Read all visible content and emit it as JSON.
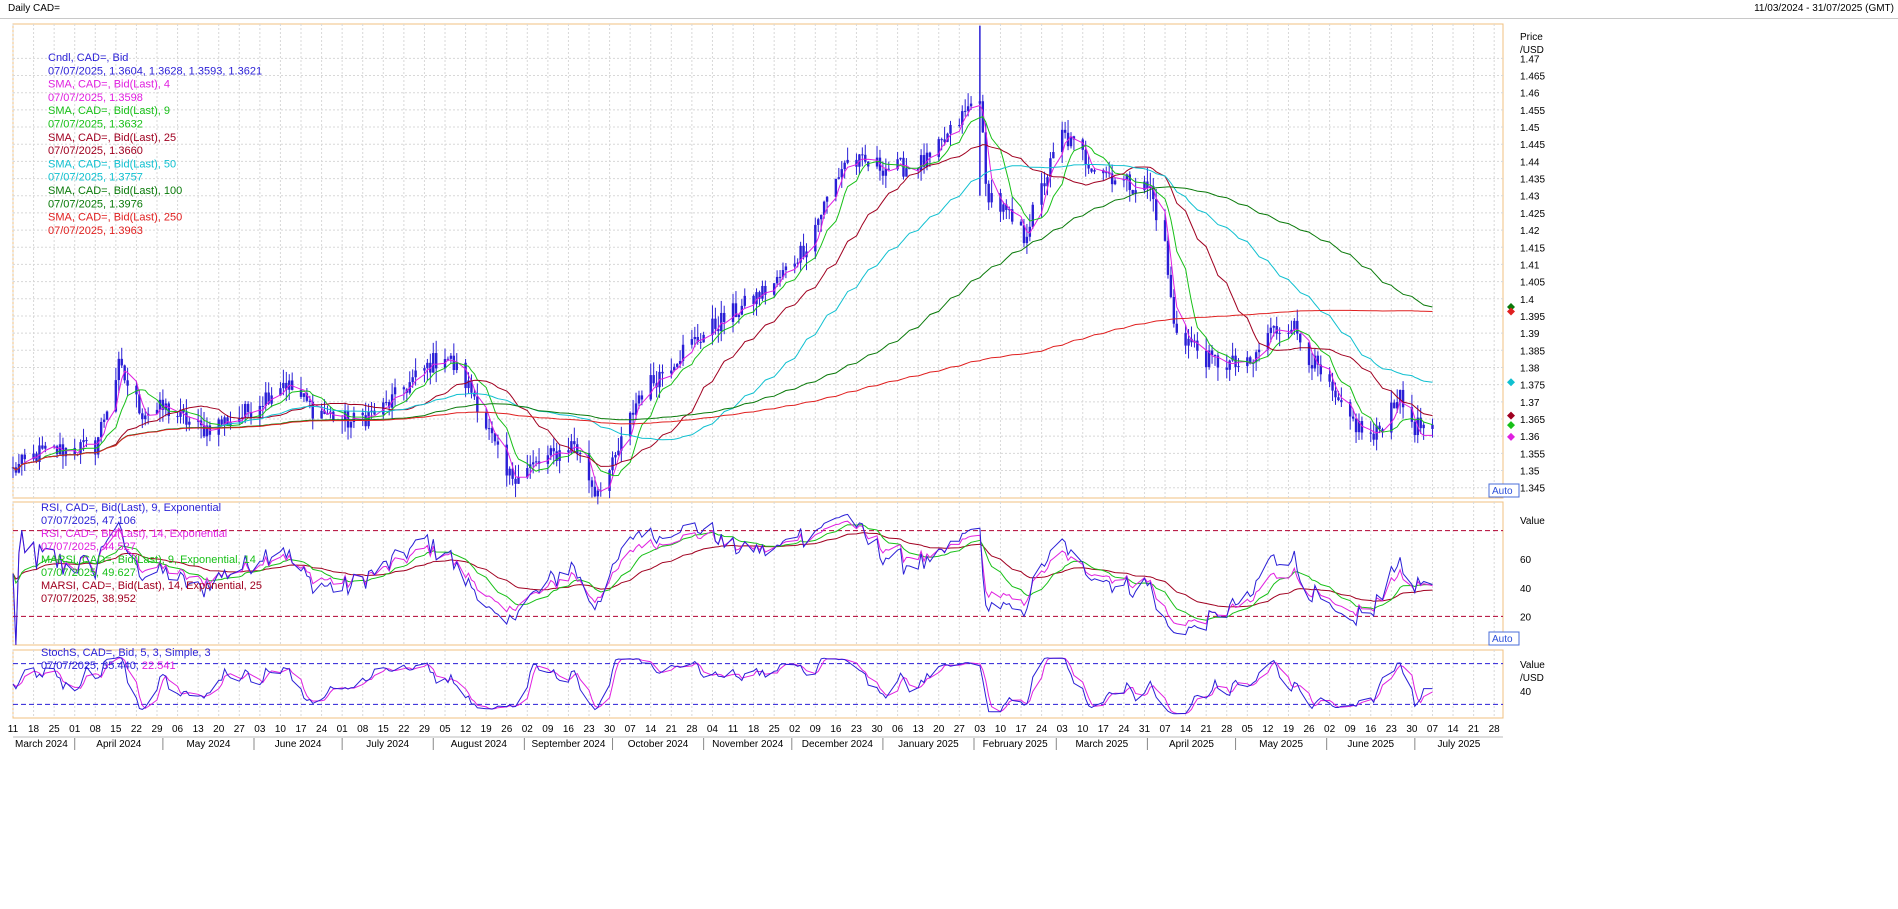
{
  "window": {
    "title": "Daily CAD=",
    "range": "11/03/2024 - 31/07/2025 (GMT)"
  },
  "colors": {
    "candle": "#2a1fd6",
    "sma4": "#e020e0",
    "sma9": "#18c018",
    "sma25": "#a00020",
    "sma50": "#10c0d0",
    "sma100": "#0a7a0a",
    "sma250": "#e02020",
    "rsi9": "#2a1fd6",
    "rsi14": "#e020e0",
    "marsi9": "#18c018",
    "marsi14": "#a00020",
    "stoch_k": "#2a1fd6",
    "stoch_d": "#e020e0",
    "grid": "#d8d8d8",
    "ref": "#b00030"
  },
  "legend": {
    "price": [
      {
        "name": "Cndl, CAD=, Bid",
        "value": "07/07/2025, 1.3604, 1.3628, 1.3593, 1.3621",
        "color": "#2a1fd6"
      },
      {
        "name": "SMA, CAD=, Bid(Last), 4",
        "value": "07/07/2025, 1.3598",
        "color": "#e020e0"
      },
      {
        "name": "SMA, CAD=, Bid(Last), 9",
        "value": "07/07/2025, 1.3632",
        "color": "#18c018"
      },
      {
        "name": "SMA, CAD=, Bid(Last), 25",
        "value": "07/07/2025, 1.3660",
        "color": "#a00020"
      },
      {
        "name": "SMA, CAD=, Bid(Last), 50",
        "value": "07/07/2025, 1.3757",
        "color": "#10c0d0"
      },
      {
        "name": "SMA, CAD=, Bid(Last), 100",
        "value": "07/07/2025, 1.3976",
        "color": "#0a7a0a"
      },
      {
        "name": "SMA, CAD=, Bid(Last), 250",
        "value": "07/07/2025, 1.3963",
        "color": "#e02020"
      }
    ],
    "rsi": [
      {
        "name": "RSI, CAD=, Bid(Last), 9, Exponential",
        "value": "07/07/2025, 47.106",
        "color": "#2a1fd6"
      },
      {
        "name": "RSI, CAD=, Bid(Last), 14, Exponential",
        "value": "07/07/2025, 44.527",
        "color": "#e020e0"
      },
      {
        "name": "MARSI, CAD=, Bid(Last), 9, Exponential, 14",
        "value": "07/07/2025, 49.627",
        "color": "#18c018"
      },
      {
        "name": "MARSI, CAD=, Bid(Last), 14, Exponential, 25",
        "value": "07/07/2025, 38.952",
        "color": "#a00020"
      }
    ],
    "stoch": [
      {
        "name": "StochS, CAD=, Bid, 5, 3, Simple, 3",
        "value": "07/07/2025, 35.440, 22.541",
        "color": "#2a1fd6",
        "value2": "22.541",
        "value1": "07/07/2025, 35.440,"
      }
    ]
  },
  "axes": {
    "price_title": "Price",
    "price_unit": "/USD",
    "price_ticks": [
      "1.47",
      "1.465",
      "1.46",
      "1.455",
      "1.45",
      "1.445",
      "1.44",
      "1.435",
      "1.43",
      "1.425",
      "1.42",
      "1.415",
      "1.41",
      "1.405",
      "1.4",
      "1.395",
      "1.39",
      "1.385",
      "1.38",
      "1.375",
      "1.37",
      "1.365",
      "1.36",
      "1.355",
      "1.35",
      "1.345"
    ],
    "rsi_title": "Value",
    "rsi_ticks": [
      "60",
      "40",
      "20"
    ],
    "stoch_title": "Value",
    "stoch_unit": "/USD",
    "stoch_ticks": [
      "40"
    ],
    "auto_label": "Auto",
    "day_ticks": [
      "11",
      "18",
      "25",
      "01",
      "08",
      "15",
      "22",
      "29",
      "06",
      "13",
      "20",
      "27",
      "03",
      "10",
      "17",
      "24",
      "01",
      "08",
      "15",
      "22",
      "29",
      "05",
      "12",
      "19",
      "26",
      "02",
      "09",
      "16",
      "23",
      "30",
      "07",
      "14",
      "21",
      "28",
      "04",
      "11",
      "18",
      "25",
      "02",
      "09",
      "16",
      "23",
      "30",
      "06",
      "13",
      "20",
      "27",
      "03",
      "10",
      "17",
      "24",
      "03",
      "10",
      "17",
      "24",
      "31",
      "07",
      "14",
      "21",
      "28",
      "05",
      "12",
      "19",
      "26",
      "02",
      "09",
      "16",
      "23",
      "30",
      "07",
      "14",
      "21",
      "28"
    ],
    "month_labels": [
      "March 2024",
      "April 2024",
      "May 2024",
      "June 2024",
      "July 2024",
      "August 2024",
      "September 2024",
      "October 2024",
      "November 2024",
      "December 2024",
      "January 2025",
      "February 2025",
      "March 2025",
      "April 2025",
      "May 2025",
      "June 2025",
      "July 2025"
    ]
  },
  "chart_data": [
    {
      "type": "line",
      "title": "Daily CAD=",
      "subtitle": "Cndl, CAD=, Bid",
      "ylabel": "Price /USD",
      "ylim": [
        1.342,
        1.48
      ],
      "x_range": [
        "11/03/2024",
        "31/07/2025"
      ],
      "close_anchors": [
        [
          "2024-03-11",
          1.35
        ],
        [
          "2024-03-20",
          1.355
        ],
        [
          "2024-03-28",
          1.356
        ],
        [
          "2024-04-08",
          1.357
        ],
        [
          "2024-04-16",
          1.38
        ],
        [
          "2024-04-24",
          1.367
        ],
        [
          "2024-05-02",
          1.368
        ],
        [
          "2024-05-14",
          1.362
        ],
        [
          "2024-05-28",
          1.366
        ],
        [
          "2024-06-11",
          1.376
        ],
        [
          "2024-06-21",
          1.368
        ],
        [
          "2024-07-04",
          1.364
        ],
        [
          "2024-07-15",
          1.368
        ],
        [
          "2024-07-31",
          1.381
        ],
        [
          "2024-08-05",
          1.384
        ],
        [
          "2024-08-15",
          1.372
        ],
        [
          "2024-08-26",
          1.348
        ],
        [
          "2024-09-06",
          1.352
        ],
        [
          "2024-09-18",
          1.358
        ],
        [
          "2024-09-25",
          1.344
        ],
        [
          "2024-10-01",
          1.351
        ],
        [
          "2024-10-10",
          1.372
        ],
        [
          "2024-10-25",
          1.385
        ],
        [
          "2024-11-06",
          1.393
        ],
        [
          "2024-11-15",
          1.398
        ],
        [
          "2024-11-26",
          1.405
        ],
        [
          "2024-12-06",
          1.416
        ],
        [
          "2024-12-19",
          1.44
        ],
        [
          "2025-01-06",
          1.438
        ],
        [
          "2025-01-17",
          1.44
        ],
        [
          "2025-02-03",
          1.46
        ],
        [
          "2025-02-05",
          1.432
        ],
        [
          "2025-02-18",
          1.418
        ],
        [
          "2025-03-03",
          1.448
        ],
        [
          "2025-03-12",
          1.44
        ],
        [
          "2025-03-24",
          1.434
        ],
        [
          "2025-04-02",
          1.432
        ],
        [
          "2025-04-07",
          1.415
        ],
        [
          "2025-04-10",
          1.392
        ],
        [
          "2025-04-22",
          1.382
        ],
        [
          "2025-05-06",
          1.38
        ],
        [
          "2025-05-12",
          1.39
        ],
        [
          "2025-05-20",
          1.393
        ],
        [
          "2025-05-29",
          1.379
        ],
        [
          "2025-06-06",
          1.367
        ],
        [
          "2025-06-17",
          1.359
        ],
        [
          "2025-06-25",
          1.372
        ],
        [
          "2025-07-01",
          1.363
        ],
        [
          "2025-07-07",
          1.3621
        ]
      ],
      "last_bar": {
        "date": "07/07/2025",
        "open": 1.3604,
        "high": 1.3628,
        "low": 1.3593,
        "close": 1.3621
      },
      "sma_last": {
        "4": 1.3598,
        "9": 1.3632,
        "25": 1.366,
        "50": 1.3757,
        "100": 1.3976,
        "250": 1.3963
      },
      "series": [
        {
          "name": "SMA, CAD=, Bid(Last), 4",
          "key": "sma4",
          "period": 4
        },
        {
          "name": "SMA, CAD=, Bid(Last), 9",
          "key": "sma9",
          "period": 9
        },
        {
          "name": "SMA, CAD=, Bid(Last), 25",
          "key": "sma25",
          "period": 25
        },
        {
          "name": "SMA, CAD=, Bid(Last), 50",
          "key": "sma50",
          "period": 50
        },
        {
          "name": "SMA, CAD=, Bid(Last), 100",
          "key": "sma100",
          "period": 100
        },
        {
          "name": "SMA, CAD=, Bid(Last), 250",
          "key": "sma250",
          "period": 250
        }
      ],
      "grid": true
    },
    {
      "type": "line",
      "ylabel": "Value",
      "ylim": [
        0,
        100
      ],
      "reference_lines": [
        80,
        20
      ],
      "last": {
        "RSI 9": 47.106,
        "RSI 14": 44.527,
        "MARSI 9": 49.627,
        "MARSI 14": 38.952
      }
    },
    {
      "type": "line",
      "ylabel": "Value /USD",
      "ylim": [
        0,
        100
      ],
      "reference_lines": [
        80,
        20
      ],
      "last": {
        "K": 35.44,
        "D": 22.541
      }
    }
  ]
}
